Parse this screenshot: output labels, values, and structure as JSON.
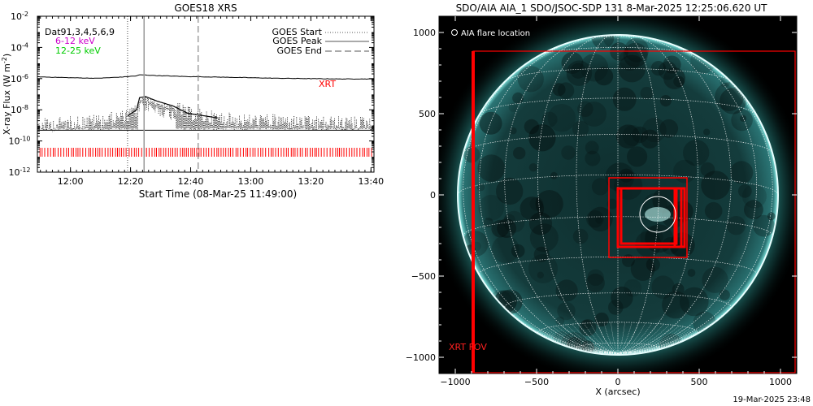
{
  "goes_panel": {
    "title": "GOES18 XRS",
    "ylabel": "X-ray Flux (W m",
    "ylabel_sup": "-2",
    "ylabel_close": ")",
    "xlabel": "Start Time (08-Mar-25 11:49:00)",
    "channels": [
      {
        "label": "Dat91,3,4,5,6,9",
        "color": "#000000"
      },
      {
        "label": "6-12 keV",
        "color": "#cc00cc"
      },
      {
        "label": "12-25 keV",
        "color": "#00cc00"
      }
    ],
    "legend": [
      {
        "label": "GOES Start",
        "style": "dotted"
      },
      {
        "label": "GOES Peak",
        "style": "solid"
      },
      {
        "label": "GOES End",
        "style": "dashed"
      }
    ],
    "xrt_label": "XRT",
    "xrt_color": "#ff0000"
  },
  "aia_panel": {
    "title": "SDO/AIA AIA_1 SDO/JSOC-SDP 131  8-Mar-2025 12:25:06.620 UT",
    "flare_label": "AIA flare location",
    "fov_label": "XRT FOV",
    "xlabel": "X (arcsec)",
    "disk_color": "#2fc4c0",
    "box_color": "#ff0000"
  },
  "footer": {
    "timestamp": "19-Mar-2025 23:48"
  },
  "chart_data": [
    {
      "type": "line",
      "title": "GOES18 XRS",
      "xlabel": "Start Time (08-Mar-25 11:49:00)",
      "ylabel": "X-ray Flux (W m^-2)",
      "x_unit": "minutes since 11:49:00",
      "xlim": [
        0,
        112
      ],
      "yscale": "log",
      "ylim": [
        1e-12,
        0.01
      ],
      "x_ticks": [
        {
          "x": 11,
          "label": "12:00"
        },
        {
          "x": 31,
          "label": "12:20"
        },
        {
          "x": 51,
          "label": "12:40"
        },
        {
          "x": 71,
          "label": "13:00"
        },
        {
          "x": 91,
          "label": "13:20"
        },
        {
          "x": 111,
          "label": "13:40"
        }
      ],
      "y_ticks": [
        {
          "exp": -2,
          "base": "10",
          "sup": "-2"
        },
        {
          "exp": -4,
          "base": "10",
          "sup": "-4"
        },
        {
          "exp": -6,
          "base": "10",
          "sup": "-6"
        },
        {
          "exp": -8,
          "base": "10",
          "sup": "-8"
        },
        {
          "exp": -10,
          "base": "10",
          "sup": "-10"
        },
        {
          "exp": -12,
          "base": "10",
          "sup": "-12"
        }
      ],
      "series": [
        {
          "name": "GOES long channel",
          "style": "solid",
          "x": [
            0,
            10,
            20,
            28,
            33,
            34,
            36,
            40,
            50,
            60,
            70,
            80,
            90,
            100,
            112
          ],
          "y": [
            1.3e-06,
            1.15e-06,
            1.05e-06,
            1.25e-06,
            1.5e-06,
            1.75e-06,
            1.7e-06,
            1.55e-06,
            1.35e-06,
            1.25e-06,
            1.15e-06,
            1.05e-06,
            1e-06,
            9.5e-07,
            9.5e-07
          ]
        },
        {
          "name": "GOES short channel",
          "style": "noisy",
          "x": [
            0,
            10,
            20,
            30,
            33,
            34,
            36,
            40,
            45,
            50,
            60,
            70,
            80,
            90,
            100,
            112
          ],
          "y": [
            1e-09,
            1.5e-09,
            2e-09,
            4e-09,
            1e-08,
            6e-08,
            7e-08,
            3.5e-08,
            1.8e-08,
            6e-09,
            3e-09,
            2e-09,
            2e-09,
            1.5e-09,
            1.5e-09,
            1.5e-09
          ]
        },
        {
          "name": "XRT",
          "style": "ticks",
          "y": 2e-11,
          "x_range": [
            0,
            112
          ]
        }
      ],
      "event_lines": [
        {
          "name": "GOES Start",
          "x": 30,
          "style": "dotted"
        },
        {
          "name": "GOES Peak",
          "x": 35.5,
          "style": "solid"
        },
        {
          "name": "GOES End",
          "x": 53.5,
          "style": "dashed"
        }
      ]
    },
    {
      "type": "image",
      "title": "SDO/AIA AIA_1 SDO/JSOC-SDP 131  8-Mar-2025 12:25:06.620 UT",
      "xlabel": "X (arcsec)",
      "xlim": [
        -1100,
        1100
      ],
      "ylim": [
        -1100,
        1100
      ],
      "x_ticks": [
        -1000,
        -500,
        0,
        500,
        1000
      ],
      "y_ticks": [
        -1000,
        -500,
        0,
        500,
        1000
      ],
      "solar_radius_arcsec": 985,
      "fov_box": {
        "x0": -890,
        "x1": 1090,
        "y0": -1095,
        "y1": 885
      },
      "flare_boxes": [
        {
          "x0": -55,
          "x1": 425,
          "y0": -385,
          "y1": 105
        },
        {
          "x0": 0,
          "x1": 390,
          "y0": -320,
          "y1": 40
        },
        {
          "x0": 20,
          "x1": 360,
          "y0": -300,
          "y1": 40
        },
        {
          "x0": 350,
          "x1": 410,
          "y0": -320,
          "y1": 40
        }
      ],
      "flare_location": {
        "x": 245,
        "y": -120,
        "r": 110
      }
    }
  ]
}
